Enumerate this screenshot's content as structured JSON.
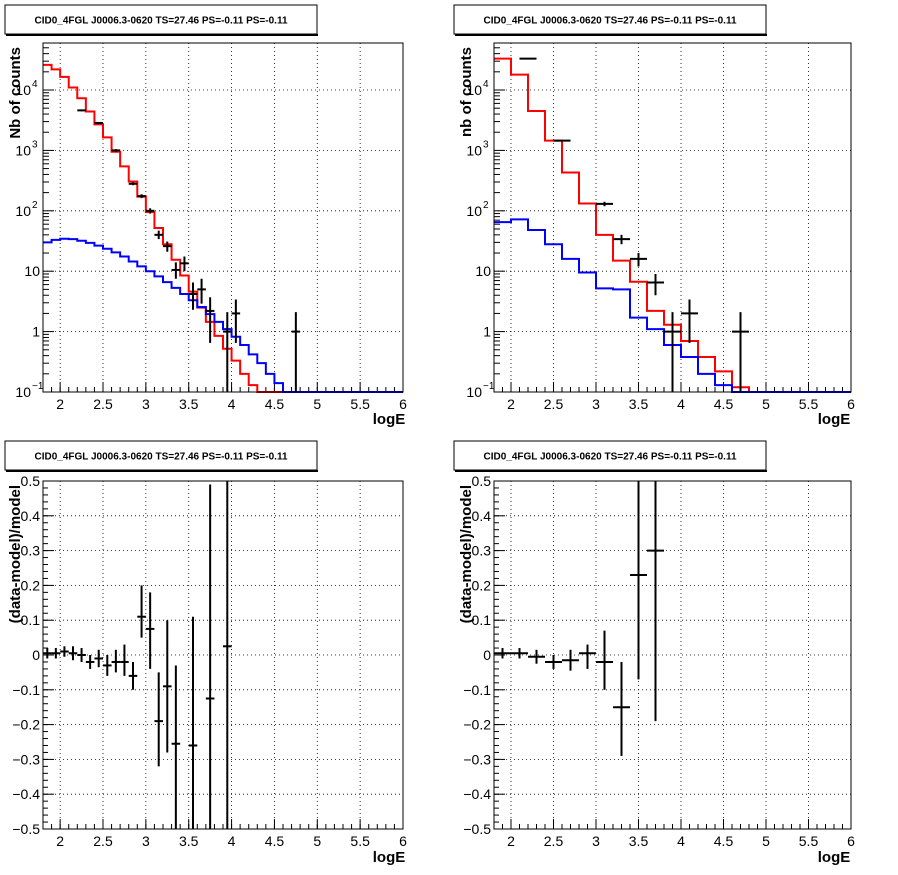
{
  "chart_data": [
    {
      "id": "tl",
      "type": "histogram",
      "title": "CID0_4FGL J0006.3-0620 TS=27.46 PS=-0.11 PS=-0.11",
      "xlabel": "logE",
      "ylabel": "Nb of counts",
      "xlim": [
        1.8,
        6.0
      ],
      "ylim": [
        0.1,
        60000
      ],
      "log_y": true,
      "grid": true,
      "x_ticks": [
        {
          "v": 2,
          "t": "2"
        },
        {
          "v": 2.5,
          "t": "2.5"
        },
        {
          "v": 3,
          "t": "3"
        },
        {
          "v": 3.5,
          "t": "3.5"
        },
        {
          "v": 4,
          "t": "4"
        },
        {
          "v": 4.5,
          "t": "4.5"
        },
        {
          "v": 5,
          "t": "5"
        },
        {
          "v": 5.5,
          "t": "5.5"
        },
        {
          "v": 6,
          "t": "6"
        }
      ],
      "y_ticks": [
        {
          "v": 0.1,
          "t": "10",
          "e": "−1"
        },
        {
          "v": 1,
          "t": "1"
        },
        {
          "v": 10,
          "t": "10"
        },
        {
          "v": 100,
          "t": "10",
          "e": "2"
        },
        {
          "v": 1000,
          "t": "10",
          "e": "3"
        },
        {
          "v": 10000,
          "t": "10",
          "e": "4"
        }
      ],
      "bin_width": 0.1,
      "bin_start": 1.8,
      "series": [
        {
          "color": "#ff0000",
          "values": [
            26000,
            22000,
            16500,
            11000,
            7300,
            4400,
            2700,
            1640,
            950,
            545,
            305,
            172,
            95,
            52,
            28,
            15.5,
            8.5,
            4.6,
            2.5,
            1.45,
            0.85,
            0.52,
            0.33,
            0.2,
            0.13,
            0.1,
            0.1,
            0.1,
            0.1,
            0.1,
            0.1,
            0.1,
            0.1,
            0.1,
            0.1,
            0.1,
            0.1,
            0.1,
            0.1,
            0.1,
            0.1,
            0.1
          ]
        },
        {
          "color": "#0000ff",
          "values": [
            30,
            33,
            34.5,
            34,
            32,
            29.5,
            26.5,
            23.5,
            20.5,
            17.5,
            14.5,
            12,
            10,
            8.2,
            6.6,
            5.3,
            4.2,
            3.3,
            2.55,
            1.95,
            1.45,
            1.1,
            0.82,
            0.6,
            0.42,
            0.3,
            0.2,
            0.14,
            0.1,
            0.1,
            0.1,
            0.1,
            0.1,
            0.1,
            0.1,
            0.1,
            0.1,
            0.1,
            0.1,
            0.1,
            0.1,
            0.1
          ]
        }
      ],
      "points": [
        {
          "x": 2.25,
          "y": 4600,
          "lo": 4450,
          "hi": 4750
        },
        {
          "x": 2.45,
          "y": 2850,
          "lo": 2750,
          "hi": 2950
        },
        {
          "x": 2.65,
          "y": 1000,
          "lo": 950,
          "hi": 1050
        },
        {
          "x": 2.85,
          "y": 280,
          "lo": 265,
          "hi": 295
        },
        {
          "x": 2.95,
          "y": 175,
          "lo": 162,
          "hi": 188
        },
        {
          "x": 3.05,
          "y": 100,
          "lo": 90,
          "hi": 110
        },
        {
          "x": 3.15,
          "y": 40,
          "lo": 34,
          "hi": 47
        },
        {
          "x": 3.25,
          "y": 26,
          "lo": 21,
          "hi": 31
        },
        {
          "x": 3.35,
          "y": 10.5,
          "lo": 7.5,
          "hi": 14
        },
        {
          "x": 3.45,
          "y": 13.5,
          "lo": 10,
          "hi": 17.5
        },
        {
          "x": 3.55,
          "y": 4.2,
          "lo": 2.3,
          "hi": 6.5
        },
        {
          "x": 3.65,
          "y": 5,
          "lo": 2.9,
          "hi": 7.5
        },
        {
          "x": 3.75,
          "y": 2.2,
          "lo": 0.65,
          "hi": 3.7
        },
        {
          "x": 3.95,
          "y": 1,
          "lo": 0.1,
          "hi": 2.1
        },
        {
          "x": 4.05,
          "y": 2,
          "lo": 0.65,
          "hi": 3.4
        },
        {
          "x": 4.75,
          "y": 1,
          "lo": 0.1,
          "hi": 2.1
        }
      ]
    },
    {
      "id": "tr",
      "type": "histogram",
      "title": "CID0_4FGL J0006.3-0620 TS=27.46 PS=-0.11 PS=-0.11",
      "xlabel": "logE",
      "ylabel": "nb of counts",
      "xlim": [
        1.8,
        6.0
      ],
      "ylim": [
        0.1,
        60000
      ],
      "log_y": true,
      "grid": true,
      "x_ticks": [
        {
          "v": 2,
          "t": "2"
        },
        {
          "v": 2.5,
          "t": "2.5"
        },
        {
          "v": 3,
          "t": "3"
        },
        {
          "v": 3.5,
          "t": "3.5"
        },
        {
          "v": 4,
          "t": "4"
        },
        {
          "v": 4.5,
          "t": "4.5"
        },
        {
          "v": 5,
          "t": "5"
        },
        {
          "v": 5.5,
          "t": "5.5"
        },
        {
          "v": 6,
          "t": "6"
        }
      ],
      "y_ticks": [
        {
          "v": 0.1,
          "t": "10",
          "e": "−1"
        },
        {
          "v": 1,
          "t": "1"
        },
        {
          "v": 10,
          "t": "10"
        },
        {
          "v": 100,
          "t": "10",
          "e": "2"
        },
        {
          "v": 1000,
          "t": "10",
          "e": "3"
        },
        {
          "v": 10000,
          "t": "10",
          "e": "4"
        }
      ],
      "bin_width": 0.2,
      "bin_start": 1.8,
      "series": [
        {
          "color": "#ff0000",
          "values": [
            33000,
            18000,
            4500,
            1450,
            430,
            132,
            40,
            15,
            6.7,
            2.2,
            1.3,
            0.7,
            0.38,
            0.22,
            0.12,
            0.1,
            0.1,
            0.1,
            0.1,
            0.1,
            0.1
          ]
        },
        {
          "color": "#0000ff",
          "values": [
            65,
            72,
            48,
            28,
            16,
            9.5,
            5.2,
            5.0,
            1.7,
            1.1,
            0.6,
            0.38,
            0.2,
            0.13,
            0.1,
            0.1,
            0.1,
            0.1,
            0.1,
            0.1,
            0.1
          ]
        }
      ],
      "points": [
        {
          "x": 2.2,
          "y": 33000,
          "lo": 32500,
          "hi": 33500
        },
        {
          "x": 2.6,
          "y": 1450,
          "lo": 1410,
          "hi": 1490
        },
        {
          "x": 3.1,
          "y": 130,
          "lo": 119,
          "hi": 141
        },
        {
          "x": 3.3,
          "y": 34,
          "lo": 28,
          "hi": 40
        },
        {
          "x": 3.5,
          "y": 16,
          "lo": 12,
          "hi": 20
        },
        {
          "x": 3.7,
          "y": 6.5,
          "lo": 4,
          "hi": 9
        },
        {
          "x": 3.9,
          "y": 1,
          "lo": 0.1,
          "hi": 2.1
        },
        {
          "x": 4.1,
          "y": 2,
          "lo": 0.65,
          "hi": 3.4
        },
        {
          "x": 4.7,
          "y": 1,
          "lo": 0.1,
          "hi": 2.1
        }
      ]
    },
    {
      "id": "bl",
      "type": "scatter",
      "title": "CID0_4FGL J0006.3-0620 TS=27.46 PS=-0.11 PS=-0.11",
      "xlabel": "logE",
      "ylabel": "(data-model)/model",
      "xlim": [
        1.8,
        6.0
      ],
      "ylim": [
        -0.5,
        0.5
      ],
      "log_y": false,
      "grid": true,
      "x_ticks": [
        {
          "v": 2,
          "t": "2"
        },
        {
          "v": 2.5,
          "t": "2.5"
        },
        {
          "v": 3,
          "t": "3"
        },
        {
          "v": 3.5,
          "t": "3.5"
        },
        {
          "v": 4,
          "t": "4"
        },
        {
          "v": 4.5,
          "t": "4.5"
        },
        {
          "v": 5,
          "t": "5"
        },
        {
          "v": 5.5,
          "t": "5.5"
        },
        {
          "v": 6,
          "t": "6"
        }
      ],
      "y_ticks": [
        {
          "v": -0.5,
          "t": "−0.5"
        },
        {
          "v": -0.4,
          "t": "−0.4"
        },
        {
          "v": -0.3,
          "t": "−0.3"
        },
        {
          "v": -0.2,
          "t": "−0.2"
        },
        {
          "v": -0.1,
          "t": "−0.1"
        },
        {
          "v": 0,
          "t": "0"
        },
        {
          "v": 0.1,
          "t": "0.1"
        },
        {
          "v": 0.2,
          "t": "0.2"
        },
        {
          "v": 0.3,
          "t": "0.3"
        },
        {
          "v": 0.4,
          "t": "0.4"
        },
        {
          "v": 0.5,
          "t": "0.5"
        }
      ],
      "points": [
        {
          "x": 1.85,
          "y": 0.005,
          "lo": -0.01,
          "hi": 0.02,
          "xe": 0.05
        },
        {
          "x": 1.95,
          "y": 0.005,
          "lo": -0.01,
          "hi": 0.02,
          "xe": 0.05
        },
        {
          "x": 2.05,
          "y": 0.01,
          "lo": -0.005,
          "hi": 0.025,
          "xe": 0.05
        },
        {
          "x": 2.15,
          "y": 0.005,
          "lo": -0.015,
          "hi": 0.025,
          "xe": 0.05
        },
        {
          "x": 2.25,
          "y": 0.0,
          "lo": -0.02,
          "hi": 0.02,
          "xe": 0.05
        },
        {
          "x": 2.35,
          "y": -0.02,
          "lo": -0.04,
          "hi": 0.0,
          "xe": 0.05
        },
        {
          "x": 2.45,
          "y": -0.01,
          "lo": -0.035,
          "hi": 0.015,
          "xe": 0.05
        },
        {
          "x": 2.55,
          "y": -0.03,
          "lo": -0.06,
          "hi": 0.0,
          "xe": 0.05
        },
        {
          "x": 2.65,
          "y": -0.02,
          "lo": -0.05,
          "hi": 0.015,
          "xe": 0.05
        },
        {
          "x": 2.75,
          "y": -0.02,
          "lo": -0.06,
          "hi": 0.03,
          "xe": 0.05
        },
        {
          "x": 2.85,
          "y": -0.06,
          "lo": -0.1,
          "hi": -0.02,
          "xe": 0.05
        },
        {
          "x": 2.95,
          "y": 0.11,
          "lo": 0.05,
          "hi": 0.2,
          "xe": 0.05
        },
        {
          "x": 3.05,
          "y": 0.075,
          "lo": -0.04,
          "hi": 0.18,
          "xe": 0.05
        },
        {
          "x": 3.15,
          "y": -0.19,
          "lo": -0.32,
          "hi": -0.05,
          "xe": 0.05
        },
        {
          "x": 3.25,
          "y": -0.09,
          "lo": -0.28,
          "hi": 0.1,
          "xe": 0.05
        },
        {
          "x": 3.35,
          "y": -0.255,
          "lo": -0.5,
          "hi": -0.03,
          "xe": 0.05
        },
        {
          "x": 3.55,
          "y": -0.26,
          "lo": -0.5,
          "hi": 0.11,
          "xe": 0.05
        },
        {
          "x": 3.75,
          "y": -0.125,
          "lo": -0.5,
          "hi": 0.49,
          "xe": 0.05
        },
        {
          "x": 3.95,
          "y": 0.025,
          "lo": -0.5,
          "hi": 0.5,
          "xe": 0.05
        }
      ]
    },
    {
      "id": "br",
      "type": "scatter",
      "title": "CID0_4FGL J0006.3-0620 TS=27.46 PS=-0.11 PS=-0.11",
      "xlabel": "logE",
      "ylabel": "(data-model)/model",
      "xlim": [
        1.8,
        6.0
      ],
      "ylim": [
        -0.5,
        0.5
      ],
      "log_y": false,
      "grid": true,
      "x_ticks": [
        {
          "v": 2,
          "t": "2"
        },
        {
          "v": 2.5,
          "t": "2.5"
        },
        {
          "v": 3,
          "t": "3"
        },
        {
          "v": 3.5,
          "t": "3.5"
        },
        {
          "v": 4,
          "t": "4"
        },
        {
          "v": 4.5,
          "t": "4.5"
        },
        {
          "v": 5,
          "t": "5"
        },
        {
          "v": 5.5,
          "t": "5.5"
        },
        {
          "v": 6,
          "t": "6"
        }
      ],
      "y_ticks": [
        {
          "v": -0.5,
          "t": "−0.5"
        },
        {
          "v": -0.4,
          "t": "−0.4"
        },
        {
          "v": -0.3,
          "t": "−0.3"
        },
        {
          "v": -0.2,
          "t": "−0.2"
        },
        {
          "v": -0.1,
          "t": "−0.1"
        },
        {
          "v": 0,
          "t": "0"
        },
        {
          "v": 0.1,
          "t": "0.1"
        },
        {
          "v": 0.2,
          "t": "0.2"
        },
        {
          "v": 0.3,
          "t": "0.3"
        },
        {
          "v": 0.4,
          "t": "0.4"
        },
        {
          "v": 0.5,
          "t": "0.5"
        }
      ],
      "points": [
        {
          "x": 1.9,
          "y": 0.005,
          "lo": -0.01,
          "hi": 0.02,
          "xe": 0.1
        },
        {
          "x": 2.1,
          "y": 0.005,
          "lo": -0.01,
          "hi": 0.02,
          "xe": 0.1
        },
        {
          "x": 2.3,
          "y": -0.005,
          "lo": -0.025,
          "hi": 0.015,
          "xe": 0.1
        },
        {
          "x": 2.5,
          "y": -0.02,
          "lo": -0.04,
          "hi": 0.0,
          "xe": 0.1
        },
        {
          "x": 2.7,
          "y": -0.015,
          "lo": -0.045,
          "hi": 0.015,
          "xe": 0.1
        },
        {
          "x": 2.9,
          "y": 0.005,
          "lo": -0.04,
          "hi": 0.03,
          "xe": 0.1
        },
        {
          "x": 3.1,
          "y": -0.02,
          "lo": -0.1,
          "hi": 0.07,
          "xe": 0.1
        },
        {
          "x": 3.3,
          "y": -0.15,
          "lo": -0.29,
          "hi": -0.02,
          "xe": 0.1
        },
        {
          "x": 3.5,
          "y": 0.23,
          "lo": -0.07,
          "hi": 0.5,
          "xe": 0.1
        },
        {
          "x": 3.7,
          "y": 0.3,
          "lo": -0.19,
          "hi": 0.5,
          "xe": 0.1
        }
      ]
    }
  ]
}
